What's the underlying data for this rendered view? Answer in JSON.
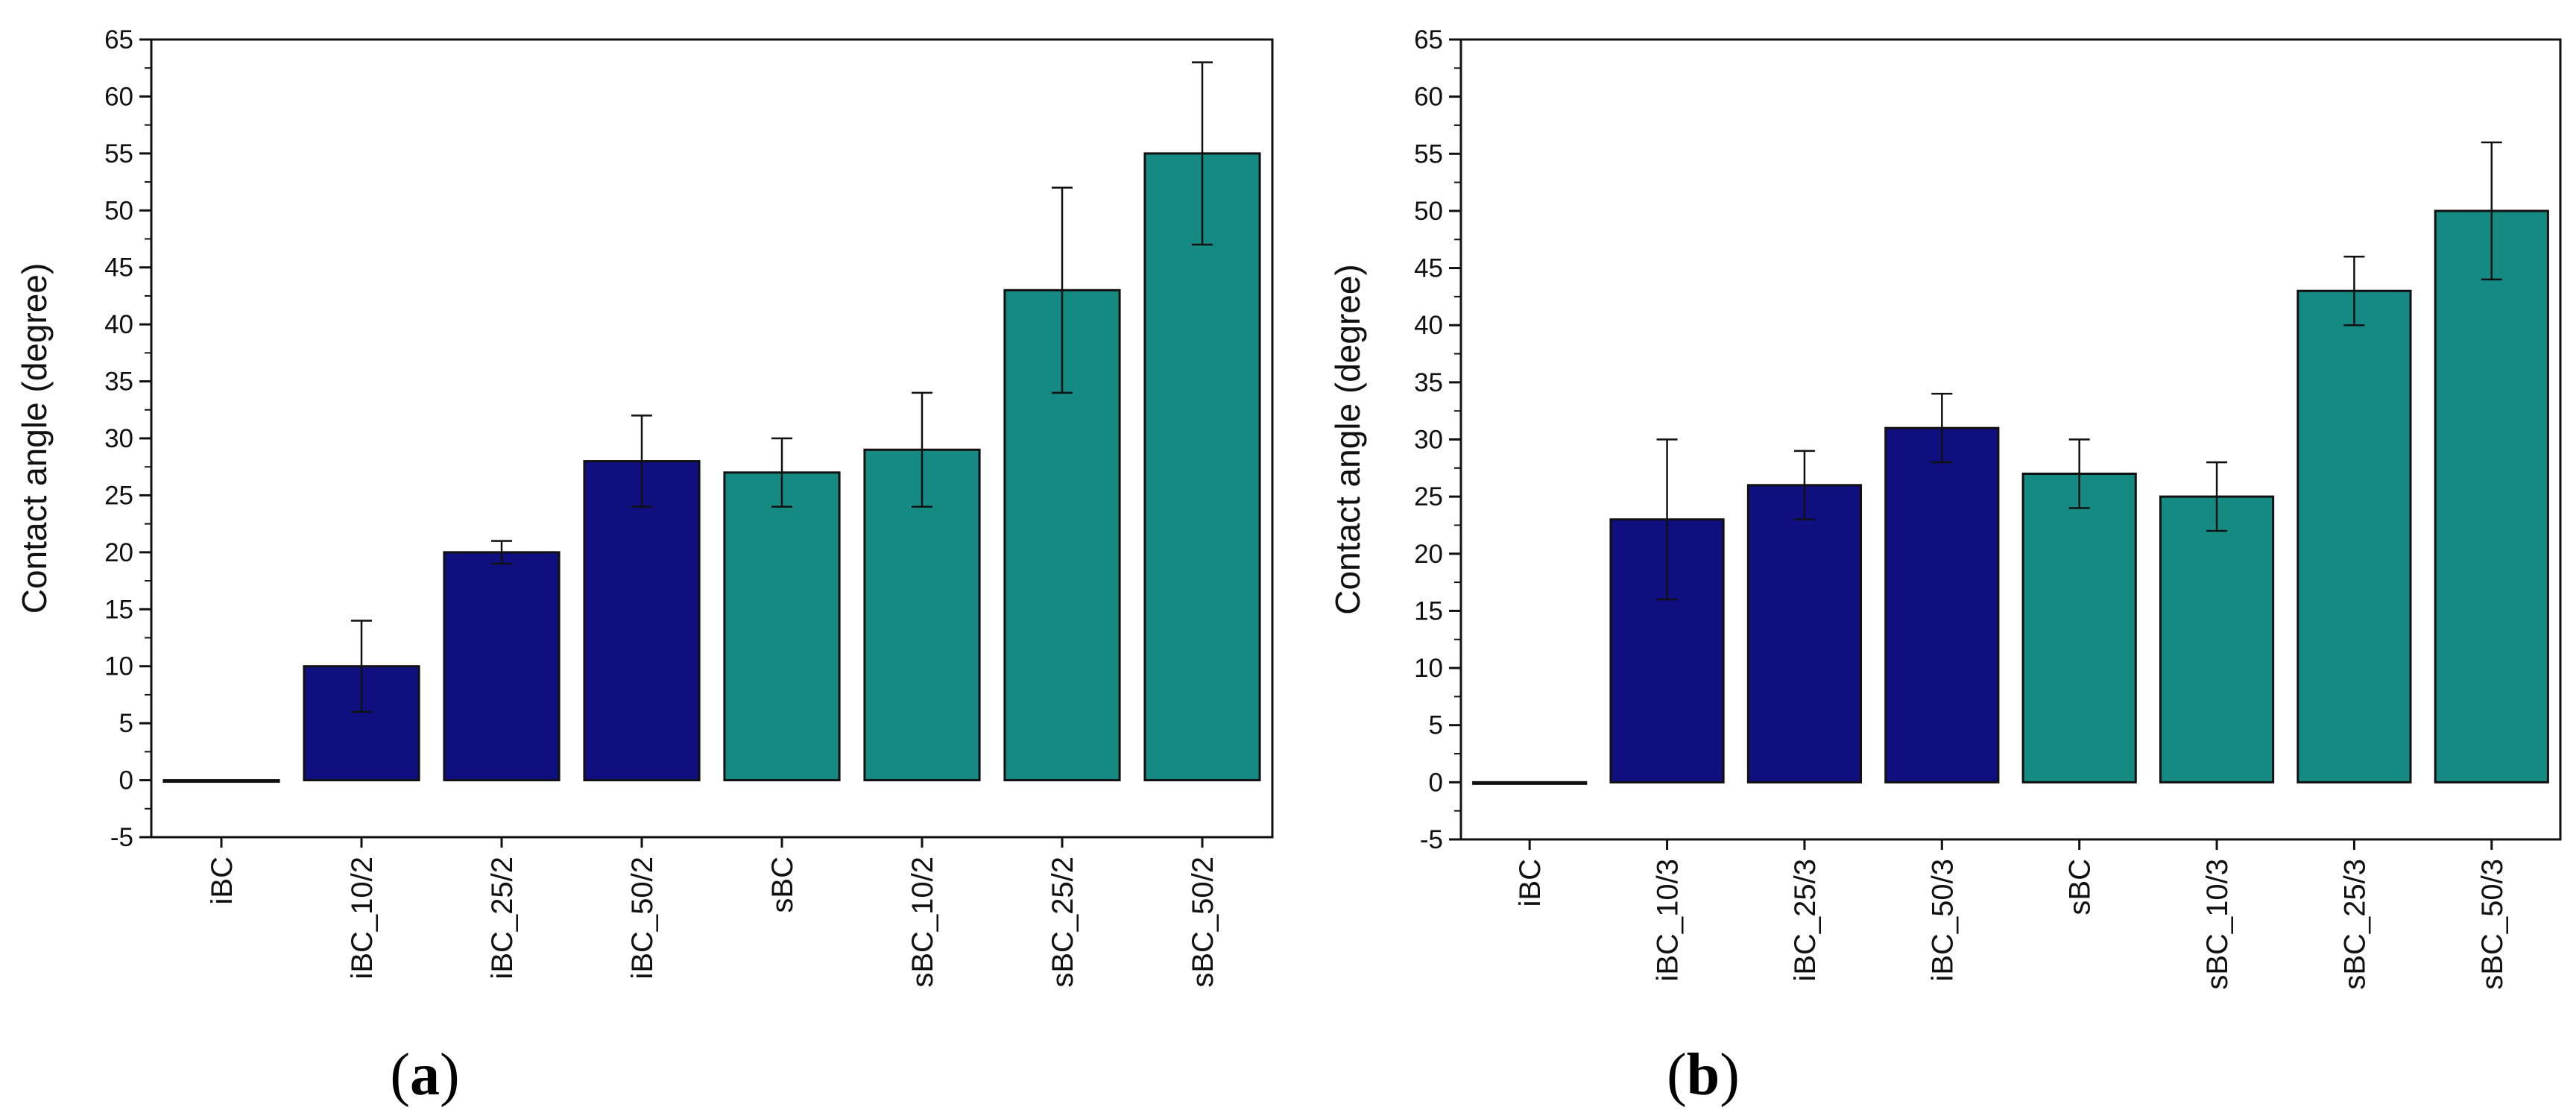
{
  "colors": {
    "iBC": "#0f0f80",
    "sBC": "#158a82",
    "frame": "#111111",
    "error_bar": "#111111"
  },
  "chart_data": [
    {
      "type": "bar",
      "panel_label": "a",
      "ylabel": "Contact angle (degree)",
      "xlabel": "",
      "ylim": [
        -5,
        65
      ],
      "y_ticks": [
        -5,
        0,
        5,
        10,
        15,
        20,
        25,
        30,
        35,
        40,
        45,
        50,
        55,
        60,
        65
      ],
      "categories": [
        "iBC",
        "iBC_10/2",
        "iBC_25/2",
        "iBC_50/2",
        "sBC",
        "sBC_10/2",
        "sBC_25/2",
        "sBC_50/2"
      ],
      "values": [
        0,
        10,
        20,
        28,
        27,
        29,
        43,
        55
      ],
      "errors": [
        0,
        4,
        1,
        4,
        3,
        5,
        9,
        8
      ],
      "groups": [
        "iBC",
        "iBC",
        "iBC",
        "iBC",
        "sBC",
        "sBC",
        "sBC",
        "sBC"
      ]
    },
    {
      "type": "bar",
      "panel_label": "b",
      "ylabel": "Contact angle (degree)",
      "xlabel": "",
      "ylim": [
        -5,
        65
      ],
      "y_ticks": [
        -5,
        0,
        5,
        10,
        15,
        20,
        25,
        30,
        35,
        40,
        45,
        50,
        55,
        60,
        65
      ],
      "categories": [
        "iBC",
        "iBC_10/3",
        "iBC_25/3",
        "iBC_50/3",
        "sBC",
        "sBC_10/3",
        "sBC_25/3",
        "sBC_50/3"
      ],
      "values": [
        0,
        23,
        26,
        31,
        27,
        25,
        43,
        50
      ],
      "errors": [
        0,
        7,
        3,
        3,
        3,
        3,
        3,
        6
      ],
      "groups": [
        "iBC",
        "iBC",
        "iBC",
        "iBC",
        "sBC",
        "sBC",
        "sBC",
        "sBC"
      ]
    }
  ]
}
